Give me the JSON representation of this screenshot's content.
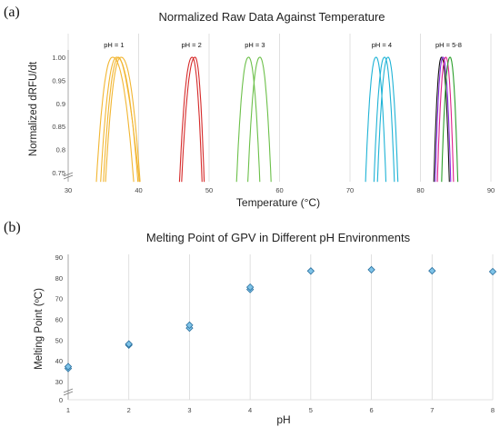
{
  "chart_data": [
    {
      "panel": "(a)",
      "type": "line",
      "title": "Normalized Raw Data Against Temperature",
      "xlabel": "Temperature (°C)",
      "ylabel": "Normalized dRFU/dt",
      "xlim": [
        30,
        90
      ],
      "ylim": [
        0.75,
        1.0
      ],
      "y_axis_break": true,
      "x_ticks": [
        "30",
        "40",
        "50",
        "60",
        "70",
        "80",
        "90"
      ],
      "y_ticks": [
        "0.75",
        "0.8",
        "0.85",
        "0.9",
        "0.95",
        "1.00"
      ],
      "x_tick_values": [
        30,
        40,
        50,
        60,
        70,
        80,
        90
      ],
      "y_tick_values": [
        0.75,
        0.8,
        0.85,
        0.9,
        0.95,
        1.0
      ],
      "grid": "vertical",
      "annotations": [
        {
          "text": "pH = 1",
          "x": 36.5
        },
        {
          "text": "pH = 2",
          "x": 47.5
        },
        {
          "text": "pH = 3",
          "x": 56.5
        },
        {
          "text": "pH = 4",
          "x": 74.5
        },
        {
          "text": "pH = 5-8",
          "x": 84
        }
      ],
      "groups": [
        {
          "label": "pH = 1",
          "color": "#f2b632",
          "curves": [
            {
              "peak": 36.3,
              "base_left": 34.0,
              "base_right": 39.3
            },
            {
              "peak": 36.9,
              "base_left": 34.6,
              "base_right": 39.9
            },
            {
              "peak": 37.2,
              "base_left": 35.0,
              "base_right": 40.1,
              "shoulder": 0.98
            },
            {
              "peak": 37.5,
              "base_left": 35.3,
              "base_right": 40.2
            }
          ]
        },
        {
          "label": "pH = 2",
          "color": "#d62a2a",
          "curves": [
            {
              "peak": 47.6,
              "base_left": 45.8,
              "base_right": 49.0
            },
            {
              "peak": 48.0,
              "base_left": 46.1,
              "base_right": 49.3
            }
          ]
        },
        {
          "label": "pH = 3",
          "color": "#6cc04a",
          "curves": [
            {
              "peak": 55.6,
              "base_left": 53.9,
              "base_right": 57.2
            },
            {
              "peak": 57.2,
              "base_left": 55.5,
              "base_right": 58.8
            }
          ]
        },
        {
          "label": "pH = 4",
          "color": "#1fb3d6",
          "curves": [
            {
              "peak": 73.7,
              "base_left": 72.2,
              "base_right": 75.1
            },
            {
              "peak": 74.9,
              "base_left": 73.4,
              "base_right": 76.3
            },
            {
              "peak": 75.4,
              "base_left": 73.9,
              "base_right": 76.8
            }
          ]
        },
        {
          "label": "pH = 5-8",
          "color": "#111111",
          "curves": [
            {
              "peak": 83.0,
              "base_left": 81.9,
              "base_right": 84.1,
              "color": "#111111"
            },
            {
              "peak": 83.2,
              "base_left": 82.1,
              "base_right": 84.3,
              "color": "#8a2be2"
            },
            {
              "peak": 83.6,
              "base_left": 82.4,
              "base_right": 84.7,
              "color": "#e0218a"
            },
            {
              "peak": 84.2,
              "base_left": 83.0,
              "base_right": 85.3,
              "color": "#2ca02c"
            }
          ]
        }
      ]
    },
    {
      "panel": "(b)",
      "type": "scatter",
      "title": "Melting Point of GPV in Different pH Environments",
      "xlabel": "pH",
      "ylabel": "Melting Point (ºC)",
      "xlim": [
        1,
        8
      ],
      "ylim": [
        0,
        90
      ],
      "y_axis_break": true,
      "x_ticks": [
        "1",
        "2",
        "3",
        "4",
        "5",
        "6",
        "7",
        "8"
      ],
      "y_ticks": [
        "0",
        "30",
        "40",
        "50",
        "60",
        "70",
        "80",
        "90"
      ],
      "x_tick_values": [
        1,
        2,
        3,
        4,
        5,
        6,
        7,
        8
      ],
      "y_tick_values": [
        0,
        30,
        40,
        50,
        60,
        70,
        80,
        90
      ],
      "grid": "vertical",
      "marker": "diamond",
      "marker_color": "#7ec3e8",
      "marker_edge": "#2a6f9e",
      "points": [
        {
          "x": 1,
          "y": 36.3
        },
        {
          "x": 1,
          "y": 37.2
        },
        {
          "x": 2,
          "y": 47.6
        },
        {
          "x": 2,
          "y": 48.1
        },
        {
          "x": 3,
          "y": 55.8
        },
        {
          "x": 3,
          "y": 57.2
        },
        {
          "x": 4,
          "y": 74.4
        },
        {
          "x": 4,
          "y": 75.5
        },
        {
          "x": 5,
          "y": 83.3
        },
        {
          "x": 6,
          "y": 83.9
        },
        {
          "x": 7,
          "y": 83.4
        },
        {
          "x": 8,
          "y": 83.0
        }
      ]
    }
  ]
}
